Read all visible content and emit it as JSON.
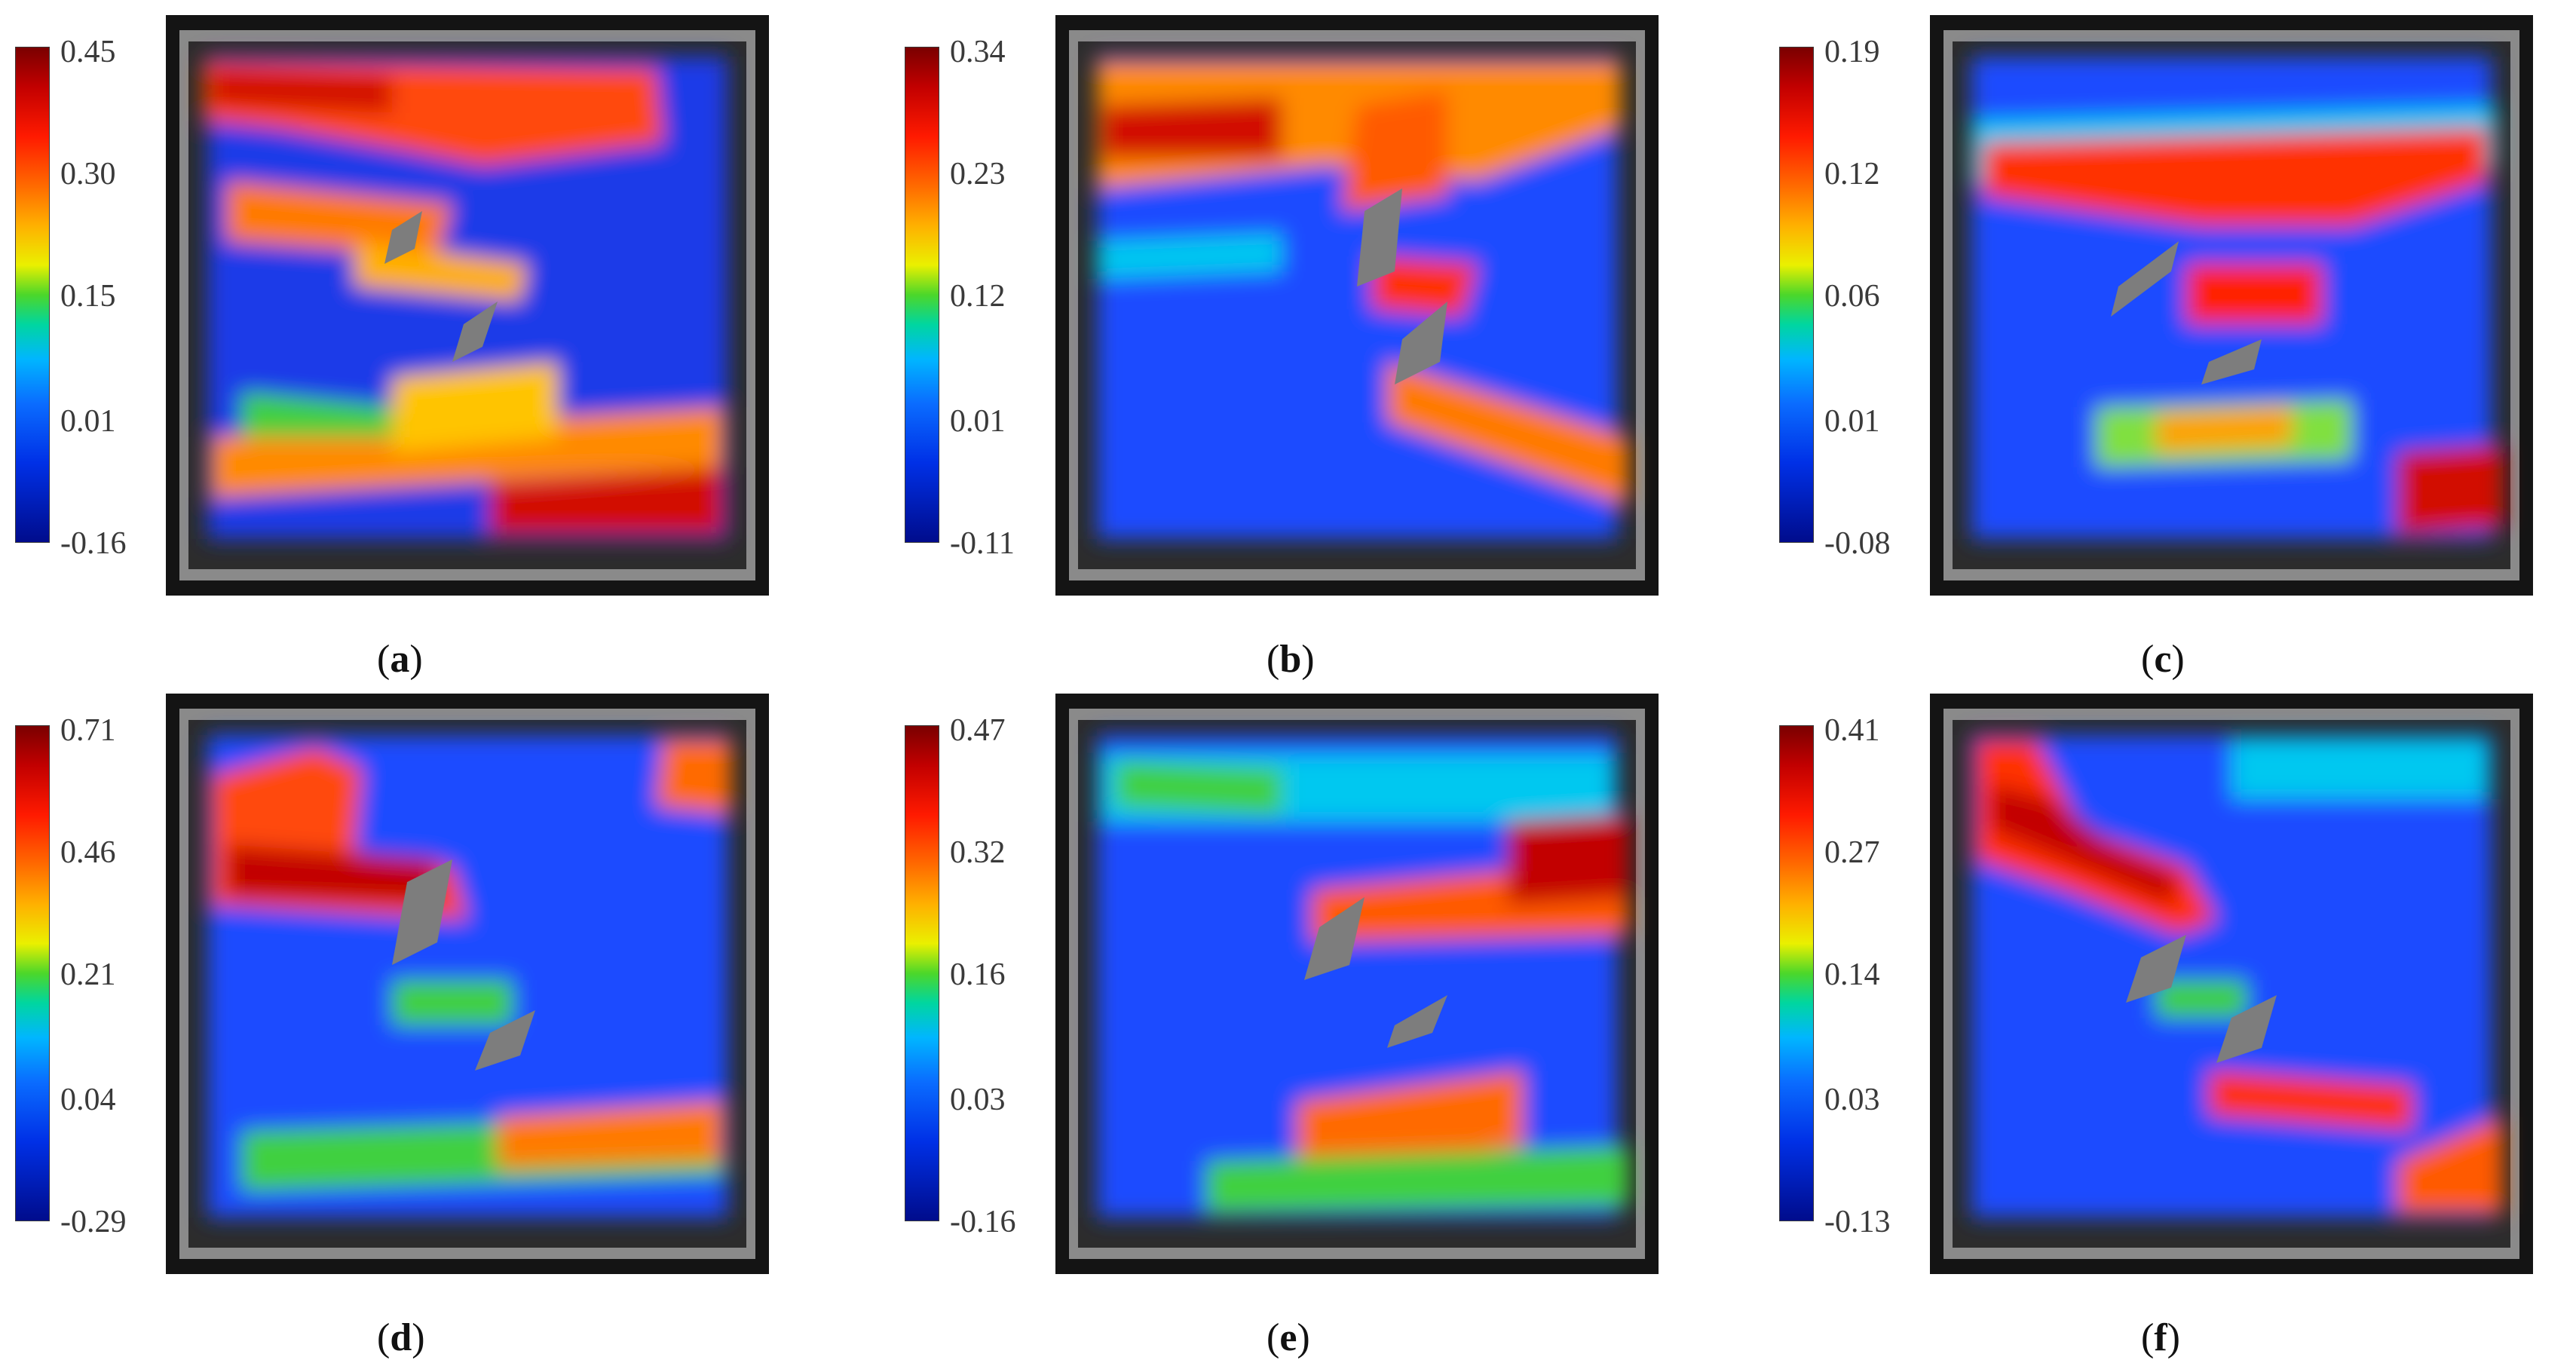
{
  "colorscale": {
    "stops": [
      "#7a0000",
      "#c20000",
      "#ff1a00",
      "#ff6a00",
      "#ffb000",
      "#eaf000",
      "#4cd72a",
      "#00d6a0",
      "#00b6ff",
      "#0a6cff",
      "#0030e6",
      "#000c8c"
    ]
  },
  "panels": [
    {
      "label": "a",
      "ticks": [
        "0.45",
        "0.30",
        "0.15",
        "0.01",
        "-0.16"
      ]
    },
    {
      "label": "b",
      "ticks": [
        "0.34",
        "0.23",
        "0.12",
        "0.01",
        "-0.11"
      ]
    },
    {
      "label": "c",
      "ticks": [
        "0.19",
        "0.12",
        "0.06",
        "0.01",
        "-0.08"
      ]
    },
    {
      "label": "d",
      "ticks": [
        "0.71",
        "0.46",
        "0.21",
        "0.04",
        "-0.29"
      ]
    },
    {
      "label": "e",
      "ticks": [
        "0.47",
        "0.32",
        "0.16",
        "0.03",
        "-0.16"
      ]
    },
    {
      "label": "f",
      "ticks": [
        "0.41",
        "0.27",
        "0.14",
        "0.03",
        "-0.13"
      ]
    }
  ]
}
